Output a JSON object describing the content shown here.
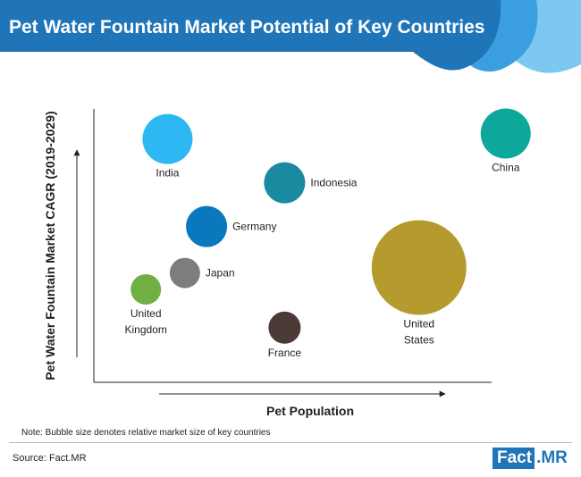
{
  "title": "Pet Water Fountain Market Potential of Key Countries",
  "colors": {
    "banner": "#1f75b8",
    "banner_wave_1": "#1c5fa0",
    "banner_wave_2": "#3a9ee0",
    "banner_wave_3": "#7cc8f0",
    "axis": "#222222",
    "logo": "#1f75b8"
  },
  "chart_data": {
    "type": "scatter",
    "title": "",
    "xlabel": "Pet Population",
    "ylabel": "Pet Water Fountain Market CAGR (2019-2029)",
    "size_encoding": "relative market size",
    "axis_ticks": false,
    "axis_arrows": true,
    "grid": false,
    "xlim": [
      0,
      100
    ],
    "ylim": [
      0,
      100
    ],
    "points": [
      {
        "label": "India",
        "x": 17,
        "y": 89,
        "size": 28,
        "color": "#2db7f3"
      },
      {
        "label": "Indonesia",
        "x": 44,
        "y": 73,
        "size": 23,
        "color": "#1a8aa1"
      },
      {
        "label": "China",
        "x": 95,
        "y": 91,
        "size": 28,
        "color": "#0ea79b"
      },
      {
        "label": "Germany",
        "x": 26,
        "y": 57,
        "size": 23,
        "color": "#0a78bd"
      },
      {
        "label": "Japan",
        "x": 21,
        "y": 40,
        "size": 17,
        "color": "#7d7d7d"
      },
      {
        "label": "United Kingdom",
        "x": 12,
        "y": 34,
        "size": 17,
        "color": "#6faf44"
      },
      {
        "label": "France",
        "x": 44,
        "y": 20,
        "size": 18,
        "color": "#4b3b37"
      },
      {
        "label": "United States",
        "x": 75,
        "y": 42,
        "size": 53,
        "color": "#b59b2e"
      }
    ]
  },
  "note": "Note: Bubble size denotes relative market size of key countries",
  "source": "Source: Fact.MR",
  "logo": {
    "part1": "Fact",
    "part2": ".MR"
  }
}
